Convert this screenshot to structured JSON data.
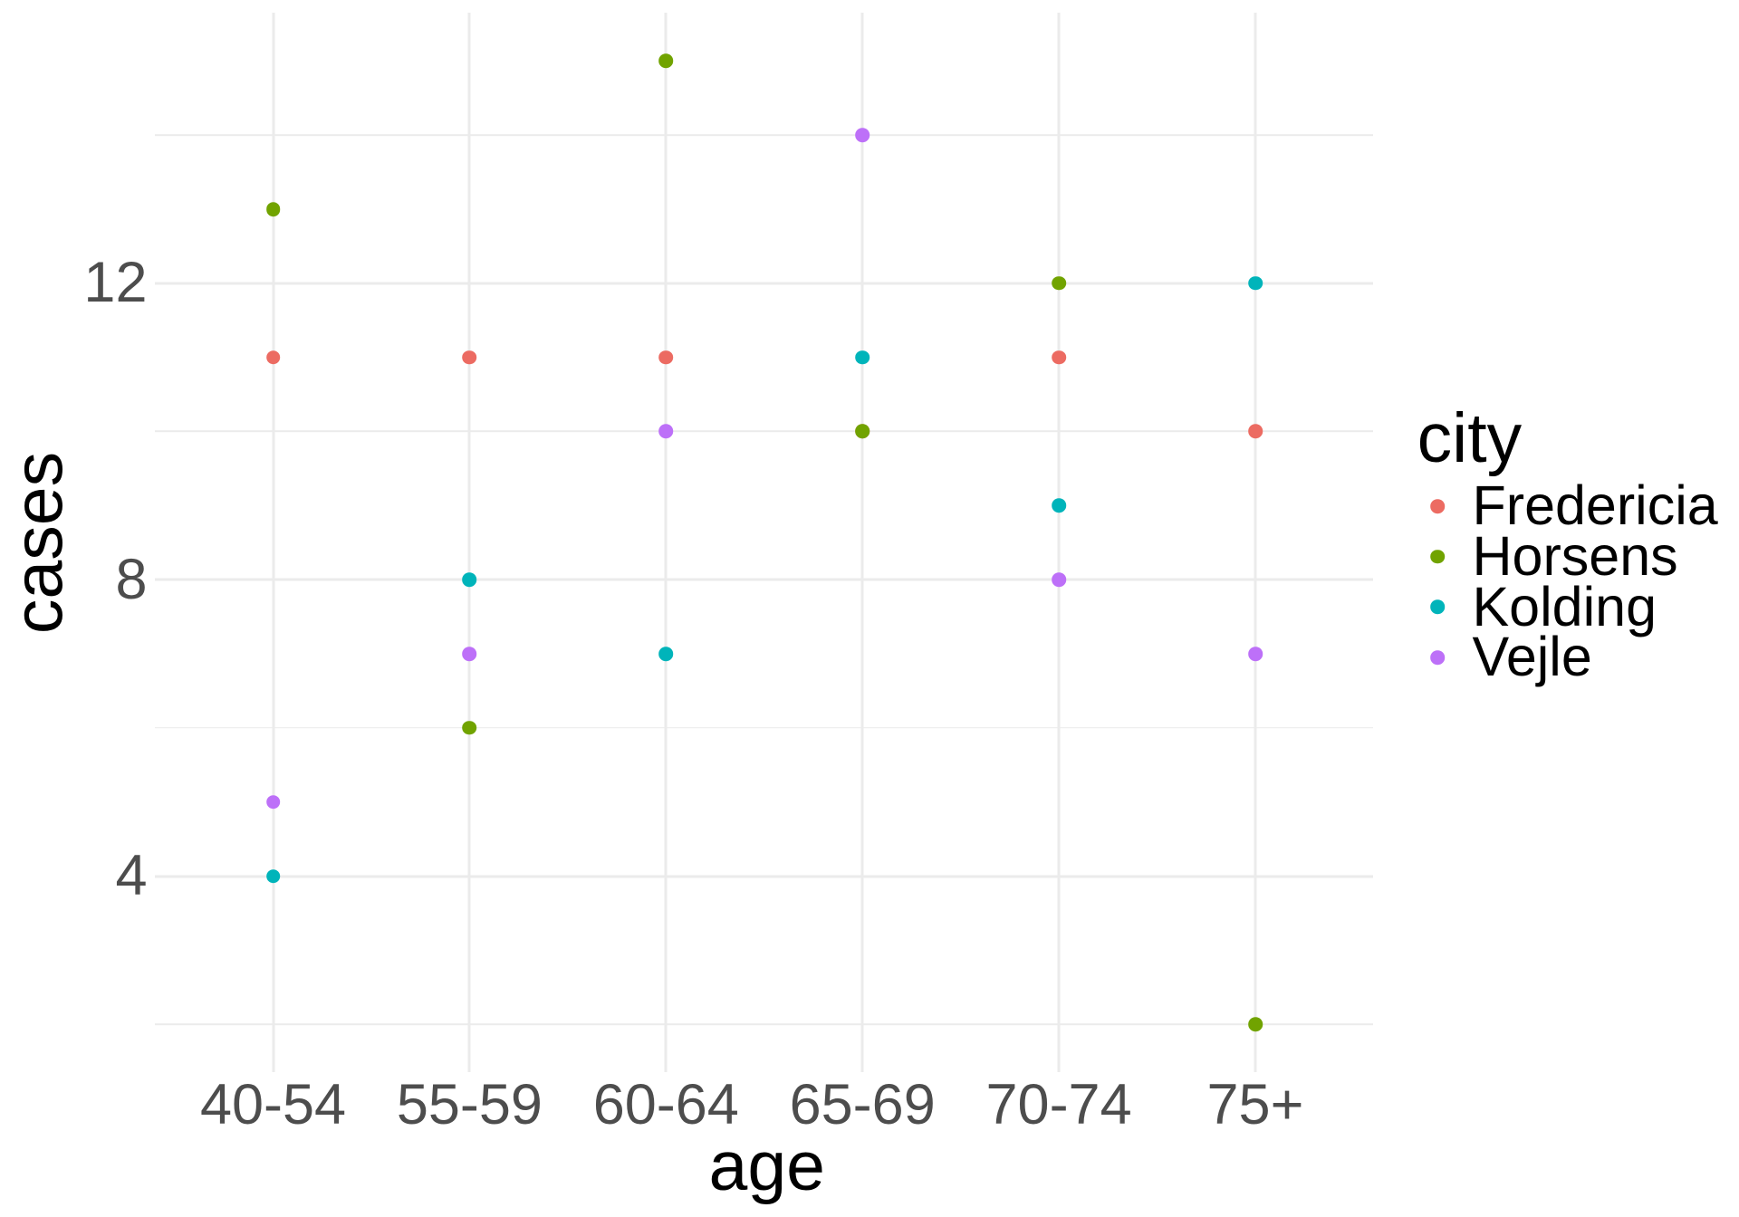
{
  "chart_data": {
    "type": "scatter",
    "title": "",
    "xlabel": "age",
    "ylabel": "cases",
    "categories": [
      "40-54",
      "55-59",
      "60-64",
      "65-69",
      "70-74",
      "75+"
    ],
    "series": [
      {
        "name": "Fredericia",
        "color": "#EC6B62",
        "values": [
          11,
          11,
          11,
          10,
          11,
          10
        ]
      },
      {
        "name": "Horsens",
        "color": "#71A300",
        "values": [
          13,
          6,
          15,
          10,
          12,
          2
        ]
      },
      {
        "name": "Kolding",
        "color": "#00B4BA",
        "values": [
          4,
          8,
          7,
          11,
          9,
          12
        ]
      },
      {
        "name": "Vejle",
        "color": "#BD70F8",
        "values": [
          5,
          7,
          10,
          14,
          8,
          7
        ]
      }
    ],
    "legend": {
      "title": "city",
      "position": "right"
    },
    "y_major_ticks": [
      4,
      8,
      12
    ],
    "y_minor_ticks": [
      2,
      6,
      10,
      14
    ],
    "ylim": [
      1.35,
      15.65
    ],
    "grid": true,
    "colors": {
      "grid": "#EBEBEB",
      "tick_label": "#4D4D4D",
      "axis_title": "#000000",
      "legend_text": "#000000",
      "background": "#FFFFFF"
    }
  }
}
